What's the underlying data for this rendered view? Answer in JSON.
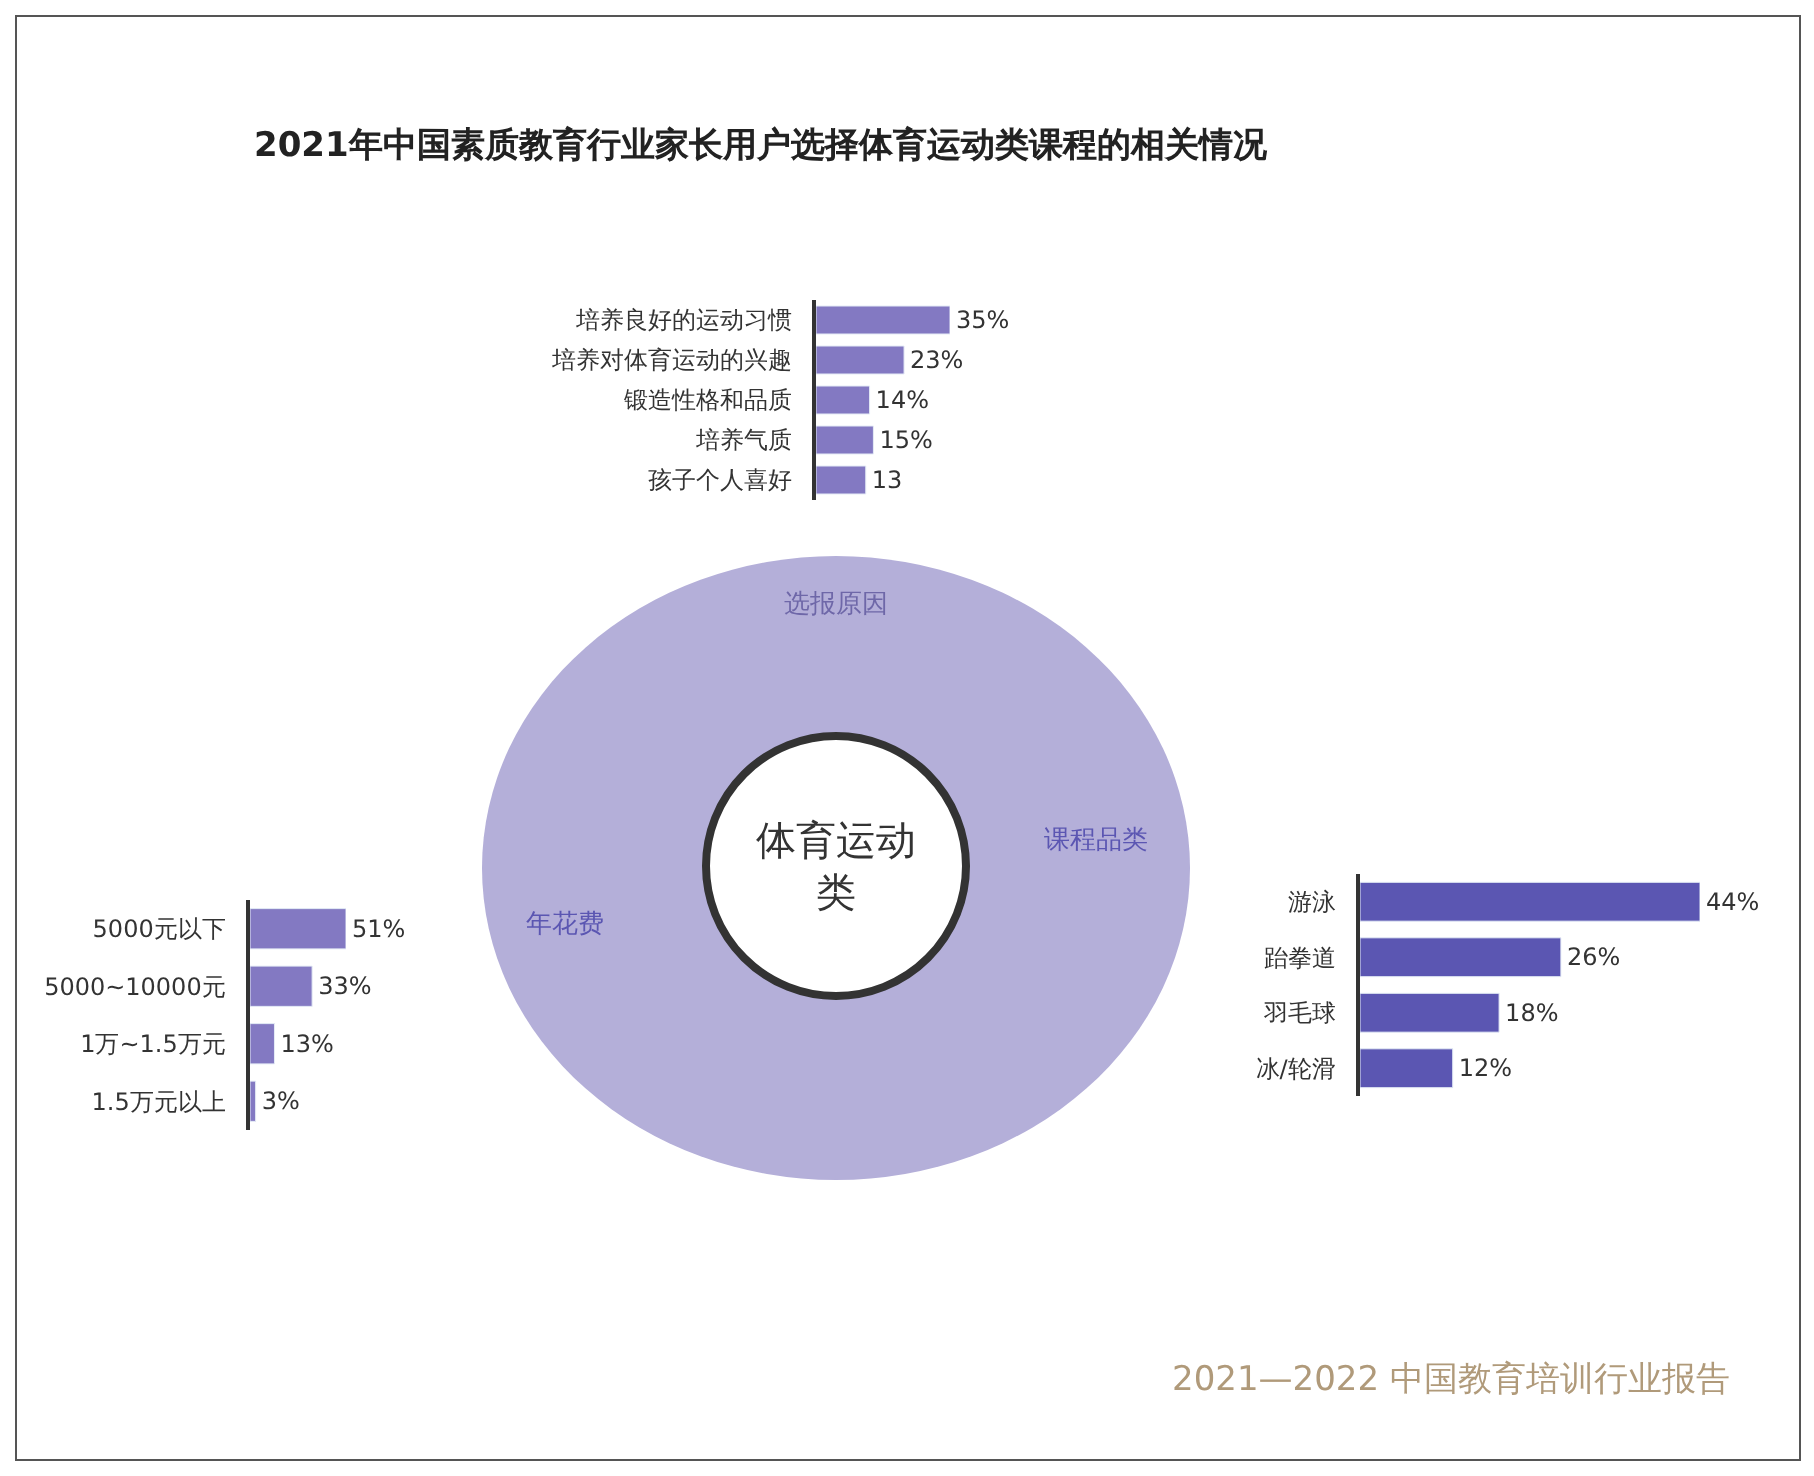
{
  "chart_data": [
    {
      "type": "other",
      "title": "2021年中国素质教育行业家长用户选择体育运动类课程的相关情况",
      "annotations": [
        "选报原因",
        "课程品类",
        "年花费",
        "体育运动类",
        "2021—2022 中国教育培训行业报告"
      ]
    },
    {
      "type": "bar",
      "orientation": "horizontal",
      "categories": [
        "培养良好的运动习惯",
        "培养对体育运动的兴趣",
        "锻造性格和品质",
        "培养气质",
        "孩子个人喜好"
      ],
      "values": [
        35,
        23,
        14,
        15,
        13
      ],
      "value_labels": [
        "35%",
        "23%",
        "14%",
        "15%",
        "13"
      ],
      "color": "#8379c2"
    },
    {
      "type": "bar",
      "orientation": "horizontal",
      "categories": [
        "5000元以下",
        "5000~10000元",
        "1万~1.5万元",
        "1.5万元以上"
      ],
      "values": [
        51,
        33,
        13,
        3
      ],
      "value_labels": [
        "51%",
        "33%",
        "13%",
        "3%"
      ],
      "color": "#8379c2"
    },
    {
      "type": "bar",
      "orientation": "horizontal",
      "categories": [
        "游泳",
        "跆拳道",
        "羽毛球",
        "冰/轮滑"
      ],
      "values": [
        44,
        26,
        18,
        12
      ],
      "value_labels": [
        "44%",
        "26%",
        "18%",
        "12%"
      ],
      "color": "#5b56b2"
    }
  ]
}
